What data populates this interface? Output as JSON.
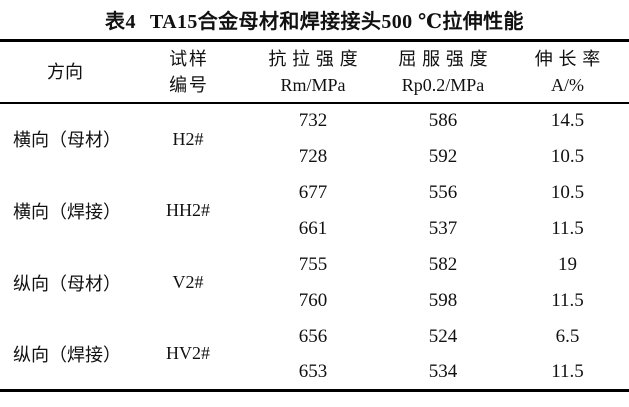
{
  "title": {
    "label": "表4",
    "text": "TA15合金母材和焊接接头500 ℃拉伸性能"
  },
  "table": {
    "columns": [
      {
        "line1": "方向",
        "line2": ""
      },
      {
        "line1": "试样",
        "line2": "编号"
      },
      {
        "line1": "抗拉强度",
        "line2": "Rm/MPa"
      },
      {
        "line1": "屈服强度",
        "line2": "Rp0.2/MPa"
      },
      {
        "line1": "伸长率",
        "line2": "A/%"
      }
    ],
    "groups": [
      {
        "direction": "横向（母材）",
        "sample": "H2#",
        "rows": [
          {
            "rm": "732",
            "rp": "586",
            "a": "14.5"
          },
          {
            "rm": "728",
            "rp": "592",
            "a": "10.5"
          }
        ]
      },
      {
        "direction": "横向（焊接）",
        "sample": "HH2#",
        "rows": [
          {
            "rm": "677",
            "rp": "556",
            "a": "10.5"
          },
          {
            "rm": "661",
            "rp": "537",
            "a": "11.5"
          }
        ]
      },
      {
        "direction": "纵向（母材）",
        "sample": "V2#",
        "rows": [
          {
            "rm": "755",
            "rp": "582",
            "a": "19"
          },
          {
            "rm": "760",
            "rp": "598",
            "a": "11.5"
          }
        ]
      },
      {
        "direction": "纵向（焊接）",
        "sample": "HV2#",
        "rows": [
          {
            "rm": "656",
            "rp": "524",
            "a": "6.5"
          },
          {
            "rm": "653",
            "rp": "534",
            "a": "11.5"
          }
        ]
      }
    ]
  },
  "colors": {
    "text": "#111111",
    "rule": "#000000",
    "background": "#ffffff"
  }
}
